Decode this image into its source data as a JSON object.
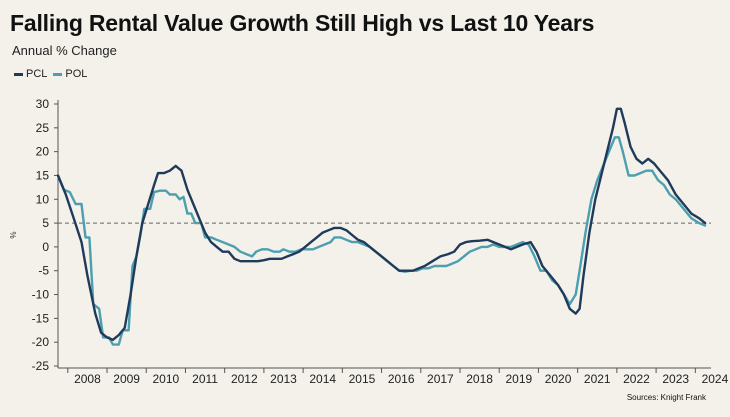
{
  "chart_data": {
    "type": "line",
    "title": "Falling Rental Value Growth Still High vs Last 10 Years",
    "subtitle": "Annual % Change",
    "ylabel": "%",
    "xlabel": "",
    "source": "Sources: Knight Frank",
    "ylim": [
      -25,
      30
    ],
    "xlim": [
      2007.75,
      2024.4
    ],
    "yticks": [
      30,
      25,
      20,
      15,
      10,
      5,
      0,
      -5,
      -10,
      -15,
      -20,
      -25
    ],
    "year_labels": [
      "2008",
      "2009",
      "2010",
      "2011",
      "2012",
      "2013",
      "2014",
      "2015",
      "2016",
      "2017",
      "2018",
      "2019",
      "2020",
      "2021",
      "2022",
      "2023",
      "2024"
    ],
    "reference_line": {
      "y": 5,
      "style": "dashed"
    },
    "colors": {
      "PCL": "#1f3a5a",
      "POL": "#4d9fb0",
      "background": "#f3f1e9",
      "axis": "#555555",
      "reference": "#666666"
    },
    "series": [
      {
        "name": "PCL",
        "points": [
          [
            2007.75,
            15
          ],
          [
            2007.95,
            11
          ],
          [
            2008.15,
            6
          ],
          [
            2008.35,
            1
          ],
          [
            2008.5,
            -6
          ],
          [
            2008.7,
            -14
          ],
          [
            2008.85,
            -18
          ],
          [
            2009.0,
            -19
          ],
          [
            2009.15,
            -19.5
          ],
          [
            2009.3,
            -18.5
          ],
          [
            2009.45,
            -17
          ],
          [
            2009.6,
            -10
          ],
          [
            2009.75,
            -2
          ],
          [
            2009.9,
            5
          ],
          [
            2010.05,
            9
          ],
          [
            2010.2,
            13
          ],
          [
            2010.3,
            15.5
          ],
          [
            2010.45,
            15.5
          ],
          [
            2010.6,
            16
          ],
          [
            2010.75,
            17
          ],
          [
            2010.9,
            16
          ],
          [
            2011.05,
            12
          ],
          [
            2011.2,
            9
          ],
          [
            2011.35,
            6
          ],
          [
            2011.5,
            3
          ],
          [
            2011.65,
            1
          ],
          [
            2011.8,
            0
          ],
          [
            2011.95,
            -1
          ],
          [
            2012.1,
            -1
          ],
          [
            2012.25,
            -2.5
          ],
          [
            2012.4,
            -3
          ],
          [
            2012.55,
            -3
          ],
          [
            2012.7,
            -3
          ],
          [
            2012.85,
            -3
          ],
          [
            2013.0,
            -2.8
          ],
          [
            2013.15,
            -2.5
          ],
          [
            2013.3,
            -2.5
          ],
          [
            2013.45,
            -2.5
          ],
          [
            2013.6,
            -2
          ],
          [
            2013.75,
            -1.5
          ],
          [
            2013.9,
            -1
          ],
          [
            2014.05,
            0
          ],
          [
            2014.2,
            1
          ],
          [
            2014.35,
            2
          ],
          [
            2014.5,
            3
          ],
          [
            2014.65,
            3.5
          ],
          [
            2014.8,
            4
          ],
          [
            2014.95,
            4
          ],
          [
            2015.1,
            3.5
          ],
          [
            2015.25,
            2.5
          ],
          [
            2015.4,
            1.5
          ],
          [
            2015.55,
            1
          ],
          [
            2015.7,
            0
          ],
          [
            2015.85,
            -1
          ],
          [
            2016.0,
            -2
          ],
          [
            2016.15,
            -3
          ],
          [
            2016.3,
            -4
          ],
          [
            2016.45,
            -5
          ],
          [
            2016.6,
            -5
          ],
          [
            2016.8,
            -5
          ],
          [
            2016.95,
            -4.5
          ],
          [
            2017.1,
            -4
          ],
          [
            2017.3,
            -3
          ],
          [
            2017.5,
            -2
          ],
          [
            2017.7,
            -1.5
          ],
          [
            2017.85,
            -1
          ],
          [
            2018.0,
            0.5
          ],
          [
            2018.15,
            1
          ],
          [
            2018.3,
            1.2
          ],
          [
            2018.5,
            1.3
          ],
          [
            2018.7,
            1.5
          ],
          [
            2018.85,
            1
          ],
          [
            2019.0,
            0.5
          ],
          [
            2019.15,
            0
          ],
          [
            2019.3,
            -0.5
          ],
          [
            2019.45,
            0
          ],
          [
            2019.6,
            0.5
          ],
          [
            2019.8,
            1
          ],
          [
            2019.95,
            -1
          ],
          [
            2020.1,
            -4
          ],
          [
            2020.3,
            -6
          ],
          [
            2020.5,
            -8
          ],
          [
            2020.65,
            -10
          ],
          [
            2020.8,
            -13
          ],
          [
            2020.95,
            -14
          ],
          [
            2021.05,
            -13
          ],
          [
            2021.15,
            -6
          ],
          [
            2021.3,
            3
          ],
          [
            2021.45,
            10
          ],
          [
            2021.6,
            15
          ],
          [
            2021.75,
            20
          ],
          [
            2021.9,
            25
          ],
          [
            2022.0,
            29
          ],
          [
            2022.1,
            29
          ],
          [
            2022.2,
            26
          ],
          [
            2022.35,
            21
          ],
          [
            2022.5,
            18.5
          ],
          [
            2022.65,
            17.5
          ],
          [
            2022.8,
            18.5
          ],
          [
            2022.95,
            17.5
          ],
          [
            2023.1,
            16
          ],
          [
            2023.3,
            14
          ],
          [
            2023.5,
            11
          ],
          [
            2023.7,
            9
          ],
          [
            2023.9,
            7
          ],
          [
            2024.1,
            6
          ],
          [
            2024.25,
            5
          ]
        ]
      },
      {
        "name": "POL",
        "points": [
          [
            2007.75,
            15
          ],
          [
            2007.9,
            12
          ],
          [
            2008.05,
            11.5
          ],
          [
            2008.2,
            9
          ],
          [
            2008.35,
            9
          ],
          [
            2008.45,
            2
          ],
          [
            2008.55,
            2
          ],
          [
            2008.65,
            -12
          ],
          [
            2008.8,
            -13
          ],
          [
            2008.9,
            -19
          ],
          [
            2009.05,
            -19
          ],
          [
            2009.15,
            -20.5
          ],
          [
            2009.3,
            -20.5
          ],
          [
            2009.4,
            -17.5
          ],
          [
            2009.55,
            -17.5
          ],
          [
            2009.65,
            -4
          ],
          [
            2009.75,
            -2
          ],
          [
            2009.85,
            2.5
          ],
          [
            2009.95,
            8
          ],
          [
            2010.1,
            8
          ],
          [
            2010.2,
            11.5
          ],
          [
            2010.35,
            11.8
          ],
          [
            2010.5,
            11.8
          ],
          [
            2010.6,
            11
          ],
          [
            2010.75,
            11
          ],
          [
            2010.85,
            10
          ],
          [
            2010.95,
            10.5
          ],
          [
            2011.05,
            7
          ],
          [
            2011.15,
            7
          ],
          [
            2011.25,
            5
          ],
          [
            2011.4,
            5
          ],
          [
            2011.5,
            2
          ],
          [
            2011.65,
            2
          ],
          [
            2011.8,
            1.5
          ],
          [
            2011.95,
            1
          ],
          [
            2012.1,
            0.5
          ],
          [
            2012.25,
            0
          ],
          [
            2012.4,
            -1
          ],
          [
            2012.55,
            -1.5
          ],
          [
            2012.7,
            -2
          ],
          [
            2012.8,
            -1
          ],
          [
            2012.95,
            -0.5
          ],
          [
            2013.1,
            -0.5
          ],
          [
            2013.25,
            -1
          ],
          [
            2013.4,
            -1
          ],
          [
            2013.5,
            -0.5
          ],
          [
            2013.65,
            -1
          ],
          [
            2013.8,
            -1
          ],
          [
            2013.95,
            -0.5
          ],
          [
            2014.1,
            -0.5
          ],
          [
            2014.25,
            -0.5
          ],
          [
            2014.4,
            0
          ],
          [
            2014.55,
            0.5
          ],
          [
            2014.7,
            1
          ],
          [
            2014.8,
            2
          ],
          [
            2014.95,
            2
          ],
          [
            2015.1,
            1.5
          ],
          [
            2015.25,
            1
          ],
          [
            2015.4,
            1
          ],
          [
            2015.55,
            0.5
          ],
          [
            2015.7,
            0
          ],
          [
            2015.85,
            -1
          ],
          [
            2016.0,
            -2
          ],
          [
            2016.15,
            -3
          ],
          [
            2016.3,
            -4
          ],
          [
            2016.45,
            -5
          ],
          [
            2016.6,
            -5.2
          ],
          [
            2016.75,
            -5
          ],
          [
            2016.9,
            -5
          ],
          [
            2017.05,
            -4.5
          ],
          [
            2017.2,
            -4.5
          ],
          [
            2017.35,
            -4
          ],
          [
            2017.5,
            -4
          ],
          [
            2017.65,
            -4
          ],
          [
            2017.8,
            -3.5
          ],
          [
            2017.95,
            -3
          ],
          [
            2018.1,
            -2
          ],
          [
            2018.25,
            -1
          ],
          [
            2018.4,
            -0.5
          ],
          [
            2018.55,
            0
          ],
          [
            2018.7,
            0
          ],
          [
            2018.85,
            0.5
          ],
          [
            2019.0,
            0
          ],
          [
            2019.15,
            0
          ],
          [
            2019.3,
            0
          ],
          [
            2019.45,
            0.5
          ],
          [
            2019.6,
            1
          ],
          [
            2019.75,
            0.5
          ],
          [
            2019.9,
            -2
          ],
          [
            2020.05,
            -5
          ],
          [
            2020.2,
            -5
          ],
          [
            2020.35,
            -7
          ],
          [
            2020.5,
            -8
          ],
          [
            2020.65,
            -10
          ],
          [
            2020.8,
            -12
          ],
          [
            2020.95,
            -10
          ],
          [
            2021.05,
            -5
          ],
          [
            2021.2,
            3
          ],
          [
            2021.35,
            10
          ],
          [
            2021.5,
            14
          ],
          [
            2021.65,
            17
          ],
          [
            2021.8,
            20
          ],
          [
            2021.95,
            23
          ],
          [
            2022.05,
            23
          ],
          [
            2022.15,
            20
          ],
          [
            2022.3,
            15
          ],
          [
            2022.45,
            15
          ],
          [
            2022.6,
            15.5
          ],
          [
            2022.75,
            16
          ],
          [
            2022.9,
            16
          ],
          [
            2023.05,
            14
          ],
          [
            2023.2,
            13
          ],
          [
            2023.35,
            11
          ],
          [
            2023.5,
            10
          ],
          [
            2023.7,
            8
          ],
          [
            2023.9,
            6
          ],
          [
            2024.1,
            5
          ],
          [
            2024.25,
            4.5
          ]
        ]
      }
    ]
  }
}
